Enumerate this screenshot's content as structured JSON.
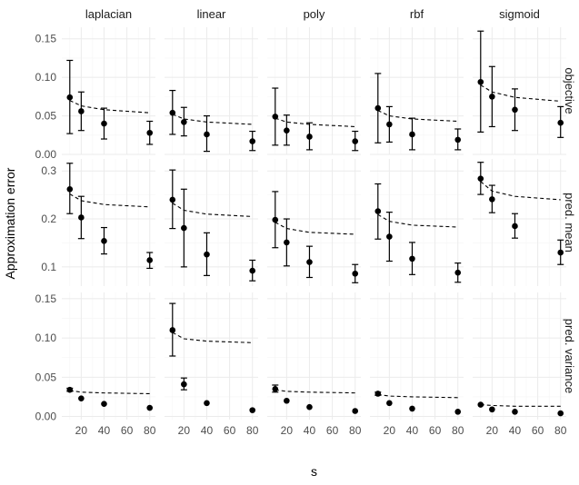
{
  "chart_data": {
    "type": "scatter",
    "facet_columns": [
      "laplacian",
      "linear",
      "poly",
      "rbf",
      "sigmoid"
    ],
    "facet_rows": [
      "objective",
      "pred. mean",
      "pred. variance"
    ],
    "xlabel": "s",
    "ylabel": "Approximation error",
    "x_ticks": [
      20,
      40,
      60,
      80
    ],
    "x_range": [
      3,
      85
    ],
    "grid": true,
    "rows": [
      {
        "name": "objective",
        "ylim": [
          0,
          0.165
        ],
        "y_ticks": [
          0.0,
          0.05,
          0.1,
          0.15
        ],
        "y_tick_labels": [
          "0.00",
          "0.05",
          "0.10",
          "0.15"
        ],
        "panels": [
          {
            "kernel": "laplacian",
            "points": [
              {
                "x": 10,
                "y": 0.074,
                "lo": 0.027,
                "hi": 0.122
              },
              {
                "x": 20,
                "y": 0.056,
                "lo": 0.031,
                "hi": 0.081
              },
              {
                "x": 40,
                "y": 0.04,
                "lo": 0.02,
                "hi": 0.06
              },
              {
                "x": 80,
                "y": 0.028,
                "lo": 0.013,
                "hi": 0.043
              }
            ],
            "reference": {
              "x": [
                10,
                20,
                40,
                80
              ],
              "y": [
                0.07,
                0.063,
                0.058,
                0.054
              ]
            }
          },
          {
            "kernel": "linear",
            "points": [
              {
                "x": 10,
                "y": 0.054,
                "lo": 0.026,
                "hi": 0.083
              },
              {
                "x": 20,
                "y": 0.042,
                "lo": 0.024,
                "hi": 0.061
              },
              {
                "x": 40,
                "y": 0.026,
                "lo": 0.004,
                "hi": 0.05
              },
              {
                "x": 80,
                "y": 0.017,
                "lo": 0.005,
                "hi": 0.03
              }
            ],
            "reference": {
              "x": [
                10,
                20,
                40,
                80
              ],
              "y": [
                0.052,
                0.046,
                0.042,
                0.039
              ]
            }
          },
          {
            "kernel": "poly",
            "points": [
              {
                "x": 10,
                "y": 0.049,
                "lo": 0.012,
                "hi": 0.086
              },
              {
                "x": 20,
                "y": 0.031,
                "lo": 0.012,
                "hi": 0.051
              },
              {
                "x": 40,
                "y": 0.023,
                "lo": 0.006,
                "hi": 0.041
              },
              {
                "x": 80,
                "y": 0.017,
                "lo": 0.005,
                "hi": 0.03
              }
            ],
            "reference": {
              "x": [
                10,
                20,
                40,
                80
              ],
              "y": [
                0.047,
                0.042,
                0.039,
                0.036
              ]
            }
          },
          {
            "kernel": "rbf",
            "points": [
              {
                "x": 10,
                "y": 0.06,
                "lo": 0.015,
                "hi": 0.105
              },
              {
                "x": 20,
                "y": 0.039,
                "lo": 0.016,
                "hi": 0.062
              },
              {
                "x": 40,
                "y": 0.026,
                "lo": 0.006,
                "hi": 0.047
              },
              {
                "x": 80,
                "y": 0.019,
                "lo": 0.006,
                "hi": 0.033
              }
            ],
            "reference": {
              "x": [
                10,
                20,
                40,
                80
              ],
              "y": [
                0.057,
                0.05,
                0.046,
                0.043
              ]
            }
          },
          {
            "kernel": "sigmoid",
            "points": [
              {
                "x": 10,
                "y": 0.094,
                "lo": 0.029,
                "hi": 0.16
              },
              {
                "x": 20,
                "y": 0.075,
                "lo": 0.036,
                "hi": 0.114
              },
              {
                "x": 40,
                "y": 0.058,
                "lo": 0.031,
                "hi": 0.085
              },
              {
                "x": 80,
                "y": 0.041,
                "lo": 0.022,
                "hi": 0.062
              }
            ],
            "reference": {
              "x": [
                10,
                20,
                40,
                80
              ],
              "y": [
                0.09,
                0.081,
                0.074,
                0.069
              ]
            }
          }
        ]
      },
      {
        "name": "pred. mean",
        "ylim": [
          0.06,
          0.325
        ],
        "y_ticks": [
          0.1,
          0.2,
          0.3
        ],
        "y_tick_labels": [
          "0.1",
          "0.2",
          "0.3"
        ],
        "panels": [
          {
            "kernel": "laplacian",
            "points": [
              {
                "x": 10,
                "y": 0.262,
                "lo": 0.211,
                "hi": 0.316
              },
              {
                "x": 20,
                "y": 0.203,
                "lo": 0.159,
                "hi": 0.247
              },
              {
                "x": 40,
                "y": 0.154,
                "lo": 0.127,
                "hi": 0.182
              },
              {
                "x": 80,
                "y": 0.114,
                "lo": 0.097,
                "hi": 0.13
              }
            ],
            "reference": {
              "x": [
                10,
                20,
                40,
                80
              ],
              "y": [
                0.252,
                0.238,
                0.23,
                0.225
              ]
            }
          },
          {
            "kernel": "linear",
            "points": [
              {
                "x": 10,
                "y": 0.24,
                "lo": 0.18,
                "hi": 0.302
              },
              {
                "x": 20,
                "y": 0.181,
                "lo": 0.1,
                "hi": 0.262
              },
              {
                "x": 40,
                "y": 0.126,
                "lo": 0.082,
                "hi": 0.171
              },
              {
                "x": 80,
                "y": 0.092,
                "lo": 0.071,
                "hi": 0.114
              }
            ],
            "reference": {
              "x": [
                10,
                20,
                40,
                80
              ],
              "y": [
                0.233,
                0.218,
                0.21,
                0.205
              ]
            }
          },
          {
            "kernel": "poly",
            "points": [
              {
                "x": 10,
                "y": 0.198,
                "lo": 0.14,
                "hi": 0.257
              },
              {
                "x": 20,
                "y": 0.151,
                "lo": 0.102,
                "hi": 0.2
              },
              {
                "x": 40,
                "y": 0.11,
                "lo": 0.078,
                "hi": 0.143
              },
              {
                "x": 80,
                "y": 0.086,
                "lo": 0.067,
                "hi": 0.105
              }
            ],
            "reference": {
              "x": [
                10,
                20,
                40,
                80
              ],
              "y": [
                0.193,
                0.18,
                0.172,
                0.168
              ]
            }
          },
          {
            "kernel": "rbf",
            "points": [
              {
                "x": 10,
                "y": 0.216,
                "lo": 0.158,
                "hi": 0.273
              },
              {
                "x": 20,
                "y": 0.163,
                "lo": 0.112,
                "hi": 0.214
              },
              {
                "x": 40,
                "y": 0.117,
                "lo": 0.084,
                "hi": 0.151
              },
              {
                "x": 80,
                "y": 0.088,
                "lo": 0.068,
                "hi": 0.108
              }
            ],
            "reference": {
              "x": [
                10,
                20,
                40,
                80
              ],
              "y": [
                0.209,
                0.195,
                0.187,
                0.183
              ]
            }
          },
          {
            "kernel": "sigmoid",
            "points": [
              {
                "x": 10,
                "y": 0.284,
                "lo": 0.251,
                "hi": 0.318
              },
              {
                "x": 20,
                "y": 0.241,
                "lo": 0.213,
                "hi": 0.27
              },
              {
                "x": 40,
                "y": 0.185,
                "lo": 0.16,
                "hi": 0.211
              },
              {
                "x": 80,
                "y": 0.13,
                "lo": 0.105,
                "hi": 0.156
              }
            ],
            "reference": {
              "x": [
                10,
                20,
                40,
                80
              ],
              "y": [
                0.278,
                0.258,
                0.247,
                0.24
              ]
            }
          }
        ]
      },
      {
        "name": "pred. variance",
        "ylim": [
          -0.004,
          0.158
        ],
        "y_ticks": [
          0.0,
          0.05,
          0.1,
          0.15
        ],
        "y_tick_labels": [
          "0.00",
          "0.05",
          "0.10",
          "0.15"
        ],
        "panels": [
          {
            "kernel": "laplacian",
            "points": [
              {
                "x": 10,
                "y": 0.034,
                "lo": 0.032,
                "hi": 0.036
              },
              {
                "x": 20,
                "y": 0.023,
                "lo": 0.023,
                "hi": 0.023
              },
              {
                "x": 40,
                "y": 0.016,
                "lo": 0.016,
                "hi": 0.016
              },
              {
                "x": 80,
                "y": 0.011,
                "lo": 0.011,
                "hi": 0.011
              }
            ],
            "reference": {
              "x": [
                10,
                20,
                40,
                80
              ],
              "y": [
                0.033,
                0.031,
                0.03,
                0.029
              ]
            }
          },
          {
            "kernel": "linear",
            "points": [
              {
                "x": 10,
                "y": 0.11,
                "lo": 0.077,
                "hi": 0.144
              },
              {
                "x": 20,
                "y": 0.041,
                "lo": 0.034,
                "hi": 0.049
              },
              {
                "x": 40,
                "y": 0.017,
                "lo": 0.017,
                "hi": 0.017
              },
              {
                "x": 80,
                "y": 0.008,
                "lo": 0.008,
                "hi": 0.008
              }
            ],
            "reference": {
              "x": [
                10,
                20,
                40,
                80
              ],
              "y": [
                0.107,
                0.099,
                0.096,
                0.094
              ]
            }
          },
          {
            "kernel": "poly",
            "points": [
              {
                "x": 10,
                "y": 0.035,
                "lo": 0.031,
                "hi": 0.04
              },
              {
                "x": 20,
                "y": 0.02,
                "lo": 0.02,
                "hi": 0.02
              },
              {
                "x": 40,
                "y": 0.012,
                "lo": 0.012,
                "hi": 0.012
              },
              {
                "x": 80,
                "y": 0.007,
                "lo": 0.007,
                "hi": 0.007
              }
            ],
            "reference": {
              "x": [
                10,
                20,
                40,
                80
              ],
              "y": [
                0.034,
                0.032,
                0.031,
                0.03
              ]
            }
          },
          {
            "kernel": "rbf",
            "points": [
              {
                "x": 10,
                "y": 0.029,
                "lo": 0.027,
                "hi": 0.031
              },
              {
                "x": 20,
                "y": 0.017,
                "lo": 0.017,
                "hi": 0.017
              },
              {
                "x": 40,
                "y": 0.01,
                "lo": 0.01,
                "hi": 0.01
              },
              {
                "x": 80,
                "y": 0.006,
                "lo": 0.006,
                "hi": 0.006
              }
            ],
            "reference": {
              "x": [
                10,
                20,
                40,
                80
              ],
              "y": [
                0.028,
                0.026,
                0.025,
                0.024
              ]
            }
          },
          {
            "kernel": "sigmoid",
            "points": [
              {
                "x": 10,
                "y": 0.015,
                "lo": 0.015,
                "hi": 0.015
              },
              {
                "x": 20,
                "y": 0.009,
                "lo": 0.009,
                "hi": 0.009
              },
              {
                "x": 40,
                "y": 0.006,
                "lo": 0.006,
                "hi": 0.006
              },
              {
                "x": 80,
                "y": 0.004,
                "lo": 0.004,
                "hi": 0.004
              }
            ],
            "reference": {
              "x": [
                10,
                20,
                40,
                80
              ],
              "y": [
                0.015,
                0.014,
                0.013,
                0.013
              ]
            }
          }
        ]
      }
    ]
  }
}
